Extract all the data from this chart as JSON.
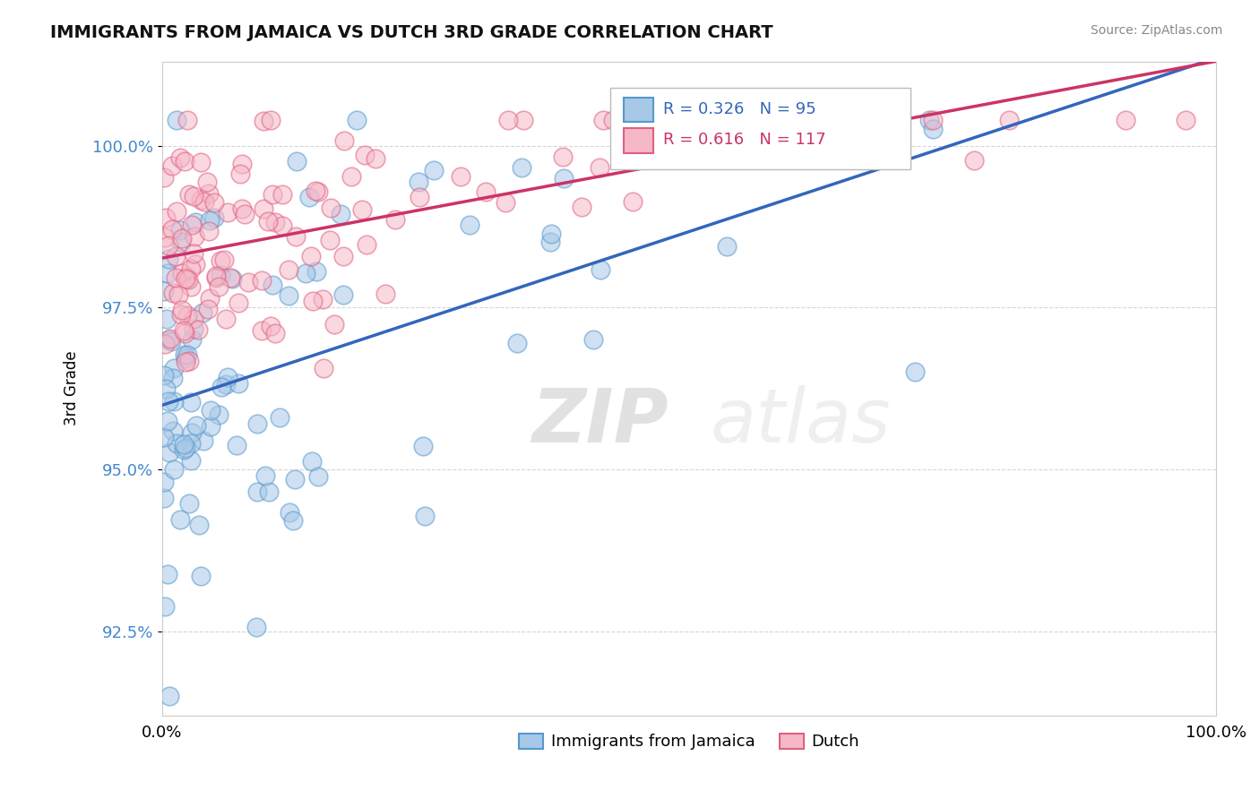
{
  "title": "IMMIGRANTS FROM JAMAICA VS DUTCH 3RD GRADE CORRELATION CHART",
  "source": "Source: ZipAtlas.com",
  "ylabel": "3rd Grade",
  "y_tick_values": [
    92.5,
    95.0,
    97.5,
    100.0
  ],
  "xlim": [
    0.0,
    100.0
  ],
  "ylim": [
    91.2,
    101.3
  ],
  "legend_jamaica": "Immigrants from Jamaica",
  "legend_dutch": "Dutch",
  "r_jamaica": 0.326,
  "n_jamaica": 95,
  "r_dutch": 0.616,
  "n_dutch": 117,
  "color_jamaica_fill": "#a8c8e8",
  "color_jamaica_edge": "#5599cc",
  "color_dutch_fill": "#f5b8c8",
  "color_dutch_edge": "#e06080",
  "color_jamaica_line": "#3366bb",
  "color_dutch_line": "#cc3366",
  "watermark_zip": "ZIP",
  "watermark_atlas": "atlas",
  "dot_size": 220,
  "dot_alpha": 0.55,
  "trend_blue_x0": 0,
  "trend_blue_y0": 96.3,
  "trend_blue_x1": 100,
  "trend_blue_y1": 100.2,
  "trend_pink_x0": 0,
  "trend_pink_y0": 98.5,
  "trend_pink_x1": 100,
  "trend_pink_y1": 100.4
}
